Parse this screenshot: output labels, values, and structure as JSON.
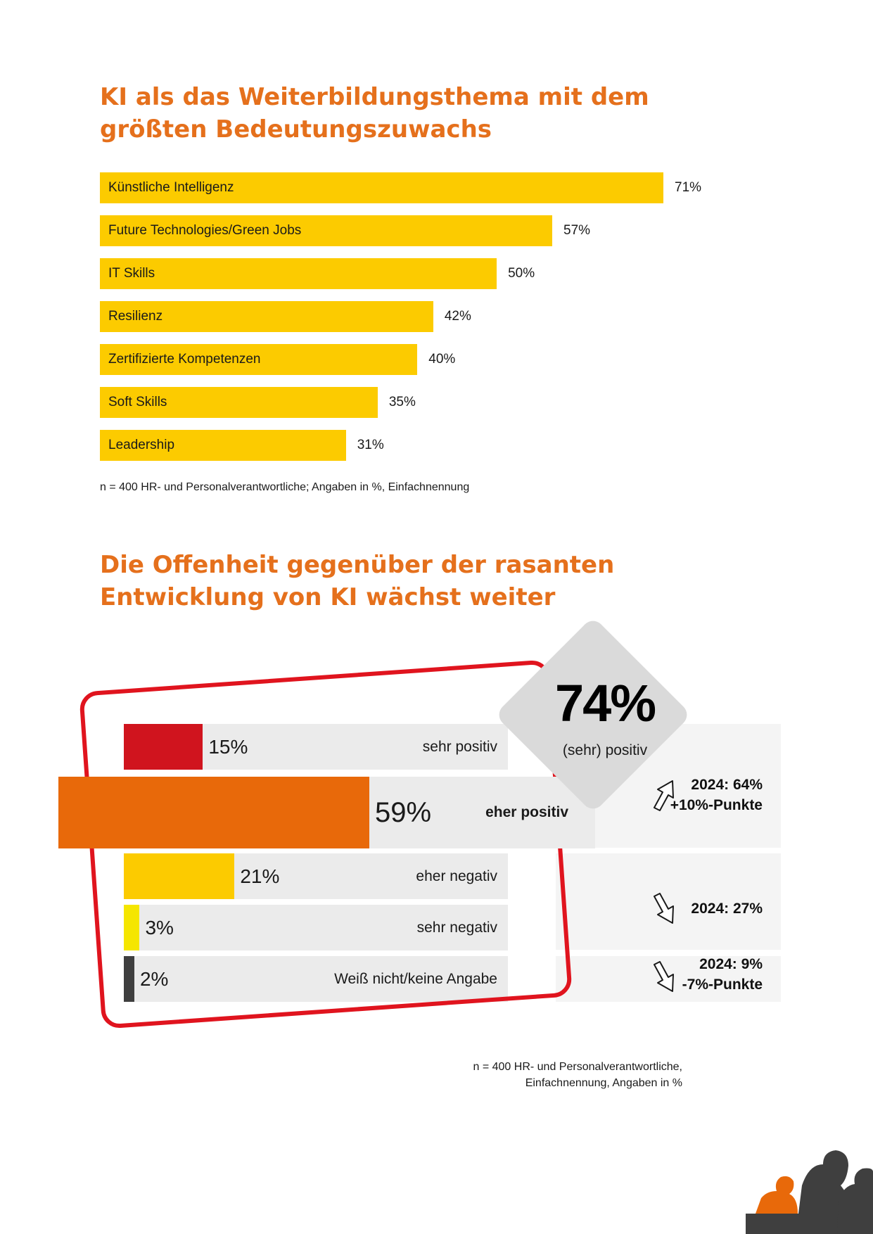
{
  "title1": {
    "line1": "KI als das Weiterbildungsthema mit dem",
    "line2": "größten Bedeutungszuwachs"
  },
  "title2": {
    "line1": "Die Offenheit gegenüber der rasanten",
    "line2": "Entwicklung von KI wächst weiter"
  },
  "note1": "n = 400 HR- und Personalverantwortliche; Angaben in %, Einfachnennung",
  "note2": {
    "line1": "n = 400 HR- und Personalverantwortliche,",
    "line2": "Einfachnennung, Angaben in %"
  },
  "colors": {
    "accent_orange": "#e5701c",
    "bar_yellow": "#fccb00",
    "red": "#d0141e",
    "orange": "#e8690a",
    "light_yellow": "#f5e600",
    "dark_gray": "#3f3f3f",
    "frame_red": "#e0141e"
  },
  "chart_data": [
    {
      "type": "bar",
      "orientation": "horizontal",
      "categories": [
        "Künstliche Intelligenz",
        "Future Technologies/Green Jobs",
        "IT Skills",
        "Resilienz",
        "Zertifizierte Kompetenzen",
        "Soft Skills",
        "Leadership"
      ],
      "values": [
        71,
        57,
        50,
        42,
        40,
        35,
        31
      ],
      "value_labels": [
        "71%",
        "57%",
        "50%",
        "42%",
        "40%",
        "35%",
        "31%"
      ],
      "title": "KI als das Weiterbildungsthema mit dem größten Bedeutungszuwachs",
      "xlim": [
        0,
        100
      ]
    },
    {
      "type": "bar",
      "orientation": "horizontal",
      "categories": [
        "sehr positiv",
        "eher positiv",
        "eher negativ",
        "sehr negativ",
        "Weiß nicht/keine Angabe"
      ],
      "values": [
        15,
        59,
        21,
        3,
        2
      ],
      "value_labels": [
        "15%",
        "59%",
        "21%",
        "3%",
        "2%"
      ],
      "bar_colors": [
        "#d0141e",
        "#e8690a",
        "#fccb00",
        "#f5e600",
        "#3f3f3f"
      ],
      "title": "Die Offenheit gegenüber der rasanten Entwicklung von KI wächst weiter",
      "highlight": {
        "value": "74%",
        "label": "(sehr) positiv"
      },
      "comparisons": [
        {
          "line1": "2024: 64%",
          "line2": "+10%-Punkte",
          "direction": "up"
        },
        {
          "line1": "2024: 27%",
          "line2": "",
          "direction": "down"
        },
        {
          "line1": "2024: 9%",
          "line2": "-7%-Punkte",
          "direction": "down"
        }
      ],
      "xlim": [
        0,
        100
      ]
    }
  ]
}
